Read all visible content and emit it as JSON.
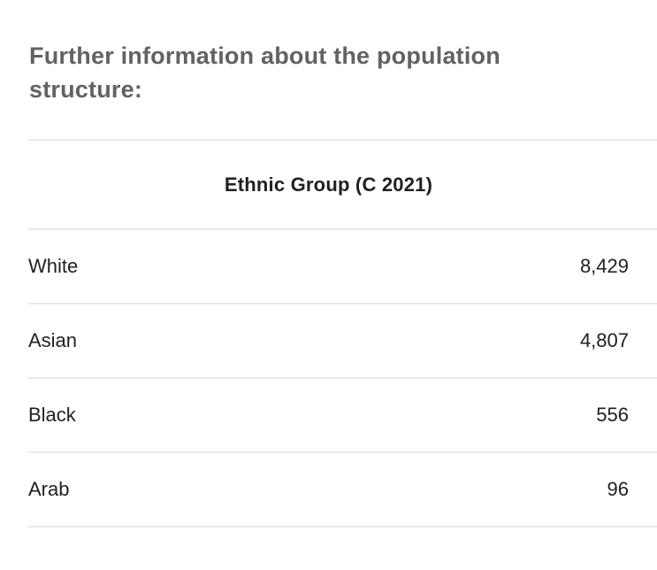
{
  "page": {
    "heading": "Further information about the population structure:"
  },
  "table": {
    "header": "Ethnic Group (C 2021)",
    "rows": [
      {
        "label": "White",
        "value": "8,429"
      },
      {
        "label": "Asian",
        "value": "4,807"
      },
      {
        "label": "Black",
        "value": "556"
      },
      {
        "label": "Arab",
        "value": "96"
      }
    ]
  },
  "colors": {
    "background": "#ffffff",
    "heading_text": "#5f6368",
    "table_text": "#202124",
    "divider": "#e9eaec"
  }
}
